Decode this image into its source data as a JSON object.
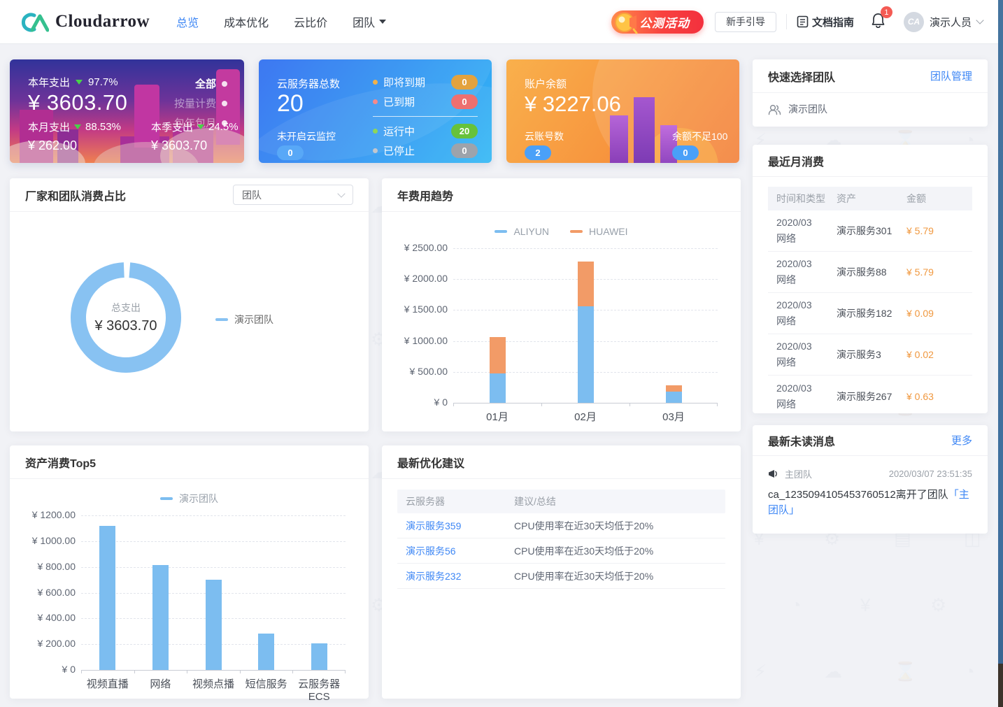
{
  "header": {
    "brand": {
      "logo_text": "CA",
      "name": "Cloudarrow"
    },
    "nav": [
      {
        "label": "总览",
        "active": true
      },
      {
        "label": "成本优化",
        "active": false
      },
      {
        "label": "云比价",
        "active": false
      },
      {
        "label": "团队",
        "active": false,
        "has_dropdown": true
      }
    ],
    "promo_badge": "公测活动",
    "guide_button": "新手引导",
    "docs_link": "文档指南",
    "notification_count": "1",
    "user": {
      "avatar_text": "CA",
      "name": "演示人员"
    }
  },
  "stat_cards": {
    "year_expense": {
      "title": "本年支出",
      "delta": "97.7%",
      "amount": "¥ 3603.70",
      "filters": [
        {
          "label": "全部",
          "active": true
        },
        {
          "label": "按量计费",
          "active": false
        },
        {
          "label": "包年包月",
          "active": false
        }
      ],
      "month": {
        "label": "本月支出",
        "delta": "88.53%",
        "amount": "¥ 262.00"
      },
      "quarter": {
        "label": "本季支出",
        "delta": "24.5%",
        "amount": "¥ 3603.70"
      }
    },
    "servers": {
      "title": "云服务器总数",
      "total": "20",
      "monitor_label": "未开启云监控",
      "monitor_value": "0",
      "statuses": [
        {
          "label": "即将到期",
          "value": "0",
          "color": "#E3A23E"
        },
        {
          "label": "已到期",
          "value": "0",
          "color": "#EE6F6F"
        },
        {
          "label": "运行中",
          "value": "20",
          "color": "#67C23A"
        },
        {
          "label": "已停止",
          "value": "0",
          "color": "#9DA3AB"
        }
      ]
    },
    "balance": {
      "title": "账户余额",
      "amount": "¥ 3227.06",
      "accounts": {
        "label": "云账号数",
        "value": "2"
      },
      "low_balance": {
        "label": "余额不足100",
        "value": "0"
      }
    }
  },
  "team_panel": {
    "title": "快速选择团队",
    "manage_link": "团队管理",
    "team_name": "演示团队"
  },
  "monthly_consumption": {
    "title": "最近月消费",
    "columns": [
      "时间和类型",
      "资产",
      "金额"
    ],
    "rows": [
      {
        "period": "2020/03",
        "type": "网络",
        "asset": "演示服务301",
        "amount": "¥ 5.79"
      },
      {
        "period": "2020/03",
        "type": "网络",
        "asset": "演示服务88",
        "amount": "¥ 5.79"
      },
      {
        "period": "2020/03",
        "type": "网络",
        "asset": "演示服务182",
        "amount": "¥ 0.09"
      },
      {
        "period": "2020/03",
        "type": "网络",
        "asset": "演示服务3",
        "amount": "¥ 0.02"
      },
      {
        "period": "2020/03",
        "type": "网络",
        "asset": "演示服务267",
        "amount": "¥ 0.63"
      }
    ]
  },
  "messages_panel": {
    "title": "最新未读消息",
    "more_link": "更多",
    "message": {
      "team": "主团队",
      "time": "2020/03/07 23:51:35",
      "text": "ca_1235094105453760512离开了团队",
      "link_text": "「主团队」"
    }
  },
  "optimization": {
    "title": "最新优化建议",
    "columns": [
      "云服务器",
      "建议/总结"
    ],
    "rows": [
      {
        "server": "演示服务359",
        "suggestion": "CPU使用率在近30天均低于20%"
      },
      {
        "server": "演示服务56",
        "suggestion": "CPU使用率在近30天均低于20%"
      },
      {
        "server": "演示服务232",
        "suggestion": "CPU使用率在近30天均低于20%"
      }
    ]
  },
  "chart_data": [
    {
      "type": "pie",
      "donut": true,
      "panel_title": "厂家和团队消费占比",
      "filter_selected": "团队",
      "center_label": "总支出",
      "center_value": "¥ 3603.70",
      "series": [
        {
          "name": "演示团队",
          "value": 3603.7,
          "color": "#88C2F2"
        }
      ],
      "legend": [
        {
          "name": "演示团队",
          "color": "#88C2F2"
        }
      ],
      "legend_position": "right"
    },
    {
      "type": "bar",
      "stacked": true,
      "panel_title": "年费用趋势",
      "categories": [
        "01月",
        "02月",
        "03月"
      ],
      "series": [
        {
          "name": "ALIYUN",
          "color": "#7CBDF0",
          "values": [
            470,
            1560,
            185
          ]
        },
        {
          "name": "HUAWEI",
          "color": "#F29B67",
          "values": [
            590,
            730,
            95
          ]
        }
      ],
      "yticks": [
        {
          "label": "¥ 0",
          "value": 0
        },
        {
          "label": "¥ 500.00",
          "value": 500
        },
        {
          "label": "¥ 1000.00",
          "value": 1000
        },
        {
          "label": "¥ 1500.00",
          "value": 1500
        },
        {
          "label": "¥ 2000.00",
          "value": 2000
        },
        {
          "label": "¥ 2500.00",
          "value": 2500
        }
      ],
      "ylim": [
        0,
        2500
      ],
      "grid": "dashed",
      "legend_position": "top"
    },
    {
      "type": "bar",
      "stacked": false,
      "panel_title": "资产消费Top5",
      "categories": [
        "视频直播",
        "网络",
        "视频点播",
        "短信服务",
        "云服务器 ECS"
      ],
      "series": [
        {
          "name": "演示团队",
          "color": "#7CBDF0",
          "values": [
            1120,
            815,
            700,
            280,
            205
          ]
        }
      ],
      "yticks": [
        {
          "label": "¥ 0",
          "value": 0
        },
        {
          "label": "¥ 200.00",
          "value": 200
        },
        {
          "label": "¥ 400.00",
          "value": 400
        },
        {
          "label": "¥ 600.00",
          "value": 600
        },
        {
          "label": "¥ 800.00",
          "value": 800
        },
        {
          "label": "¥ 1000.00",
          "value": 1000
        },
        {
          "label": "¥ 1200.00",
          "value": 1200
        }
      ],
      "ylim": [
        0,
        1200
      ],
      "grid": "dashed",
      "legend_position": "top"
    }
  ]
}
